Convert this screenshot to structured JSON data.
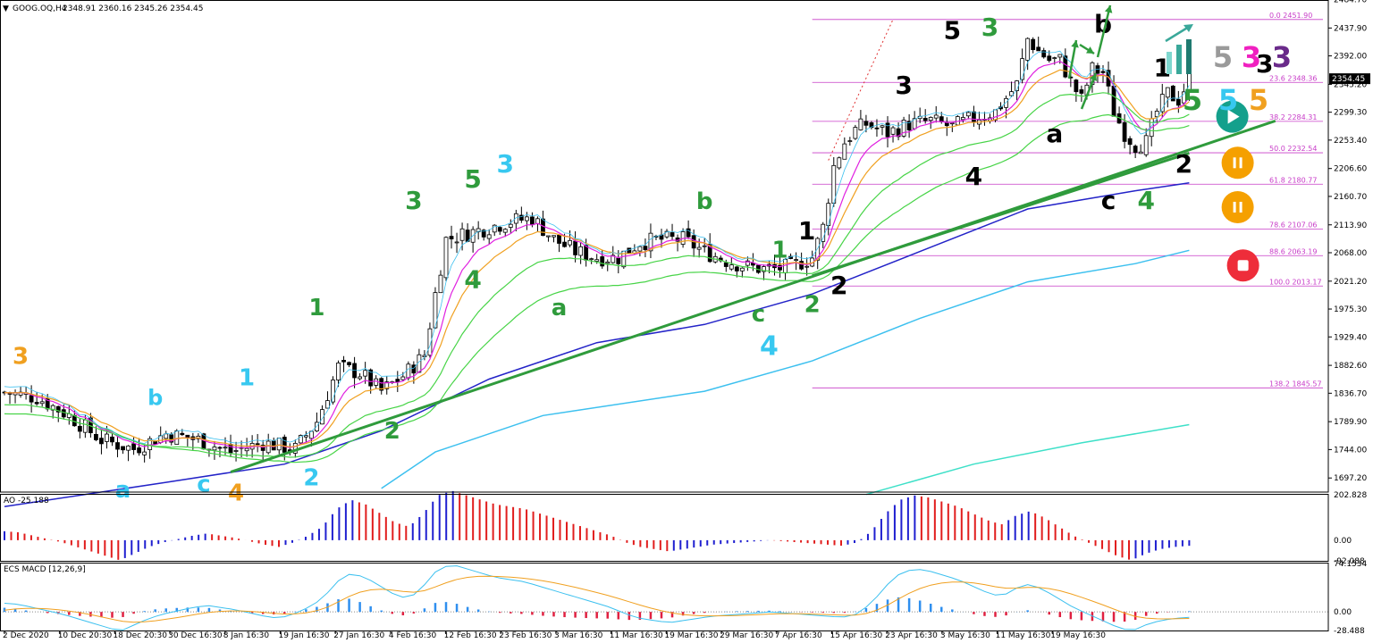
{
  "header": {
    "symbol": "GOOG.OQ,H4",
    "ohlc": "2348.91 2360.16 2345.26 2354.45",
    "triangle": "▼"
  },
  "colors": {
    "bg": "#ffffff",
    "grid": "#e6e6e6",
    "candle_bull": "#ffffff",
    "candle_bear": "#000000",
    "trend": "#2f9b3c",
    "fib": "#c83cc8",
    "ma_blue": "#2323c8",
    "ma_cyan": "#3cc0ef",
    "ma_teal": "#3ee0c8",
    "ema_green": "#47d447",
    "ema_orange": "#f0a020",
    "ema_magenta": "#e020e0",
    "ao_up": "#1f1fd0",
    "ao_down": "#e11d1d",
    "macd_up": "#2f8fef",
    "macd_down": "#e02040",
    "play": "#14a08c",
    "pause": "#f5a000",
    "stop": "#ee2d3a"
  },
  "chart_data": {
    "type": "candlestick",
    "symbol": "GOOG.OQ",
    "timeframe": "H4",
    "ylim": [
      1674,
      2484
    ],
    "price_ticks": [
      2484.7,
      2437.9,
      2392.0,
      2345.2,
      2299.3,
      2253.4,
      2206.6,
      2160.7,
      2113.9,
      2068.0,
      2021.2,
      1975.3,
      1929.4,
      1882.6,
      1836.7,
      1789.9,
      1744.0,
      1697.2
    ],
    "current_price_label": "2354.45",
    "time_labels": [
      "2 Dec 2020",
      "10 Dec 20:30",
      "18 Dec 20:30",
      "30 Dec 16:30",
      "8 Jan 16:30",
      "19 Jan 16:30",
      "27 Jan 16:30",
      "4 Feb 16:30",
      "12 Feb 16:30",
      "23 Feb 16:30",
      "3 Mar 16:30",
      "11 Mar 16:30",
      "19 Mar 16:30",
      "29 Mar 16:30",
      "7 Apr 16:30",
      "15 Apr 16:30",
      "23 Apr 16:30",
      "3 May 16:30",
      "11 May 16:30",
      "19 May 16:30"
    ],
    "close_path": [
      [
        0,
        1838
      ],
      [
        6,
        1830
      ],
      [
        12,
        1800
      ],
      [
        18,
        1760
      ],
      [
        24,
        1745
      ],
      [
        30,
        1770
      ],
      [
        36,
        1760
      ],
      [
        42,
        1740
      ],
      [
        48,
        1755
      ],
      [
        54,
        1745
      ],
      [
        58,
        1790
      ],
      [
        62,
        1880
      ],
      [
        66,
        1870
      ],
      [
        70,
        1840
      ],
      [
        74,
        1865
      ],
      [
        78,
        1900
      ],
      [
        80,
        2000
      ],
      [
        82,
        2090
      ],
      [
        86,
        2100
      ],
      [
        90,
        2110
      ],
      [
        94,
        2120
      ],
      [
        98,
        2125
      ],
      [
        102,
        2090
      ],
      [
        106,
        2070
      ],
      [
        110,
        2060
      ],
      [
        114,
        2060
      ],
      [
        118,
        2085
      ],
      [
        122,
        2090
      ],
      [
        126,
        2090
      ],
      [
        130,
        2070
      ],
      [
        134,
        2055
      ],
      [
        138,
        2045
      ],
      [
        142,
        2040
      ],
      [
        146,
        2045
      ],
      [
        150,
        2060
      ],
      [
        152,
        2110
      ],
      [
        154,
        2210
      ],
      [
        156,
        2250
      ],
      [
        158,
        2270
      ],
      [
        160,
        2280
      ],
      [
        164,
        2265
      ],
      [
        168,
        2280
      ],
      [
        172,
        2285
      ],
      [
        176,
        2275
      ],
      [
        180,
        2290
      ],
      [
        184,
        2300
      ],
      [
        188,
        2345
      ],
      [
        190,
        2420
      ],
      [
        192,
        2400
      ],
      [
        194,
        2385
      ],
      [
        196,
        2385
      ],
      [
        198,
        2350
      ],
      [
        200,
        2320
      ],
      [
        202,
        2370
      ],
      [
        204,
        2365
      ],
      [
        206,
        2300
      ],
      [
        208,
        2265
      ],
      [
        210,
        2245
      ],
      [
        212,
        2250
      ],
      [
        214,
        2300
      ],
      [
        216,
        2330
      ],
      [
        218,
        2320
      ],
      [
        220,
        2354
      ]
    ],
    "fibonacci": [
      {
        "level": "0.0",
        "price": 2451.9
      },
      {
        "level": "23.6",
        "price": 2348.36
      },
      {
        "level": "38.2",
        "price": 2284.31
      },
      {
        "level": "50.0",
        "price": 2232.54
      },
      {
        "level": "61.8",
        "price": 2180.77
      },
      {
        "level": "78.6",
        "price": 2107.06
      },
      {
        "level": "88.6",
        "price": 2063.19
      },
      {
        "level": "100.0",
        "price": 2013.17
      },
      {
        "level": "138.2",
        "price": 1845.57
      }
    ],
    "moving_averages": [
      {
        "color": "ma_blue",
        "points": [
          [
            0,
            1650
          ],
          [
            30,
            1690
          ],
          [
            52,
            1720
          ],
          [
            70,
            1775
          ],
          [
            90,
            1860
          ],
          [
            110,
            1920
          ],
          [
            130,
            1950
          ],
          [
            150,
            2000
          ],
          [
            170,
            2070
          ],
          [
            190,
            2140
          ],
          [
            210,
            2170
          ],
          [
            220,
            2183
          ]
        ]
      },
      {
        "color": "ma_cyan",
        "points": [
          [
            70,
            1680
          ],
          [
            80,
            1740
          ],
          [
            100,
            1800
          ],
          [
            130,
            1840
          ],
          [
            150,
            1890
          ],
          [
            170,
            1960
          ],
          [
            190,
            2020
          ],
          [
            210,
            2050
          ],
          [
            220,
            2072
          ]
        ]
      },
      {
        "color": "ma_teal",
        "points": [
          [
            160,
            1670
          ],
          [
            180,
            1720
          ],
          [
            200,
            1755
          ],
          [
            220,
            1785
          ]
        ]
      }
    ],
    "trendlines": [
      {
        "from": [
          42,
          1707
        ],
        "to": [
          236,
          2285
        ]
      },
      {
        "from": [
          150,
          2030
        ],
        "to": [
          220,
          2232
        ]
      }
    ],
    "wave_labels": [
      {
        "text": "3",
        "color": "#f0a020",
        "i": 3,
        "p": 1885,
        "size": 26
      },
      {
        "text": "b",
        "color": "#38c8f0",
        "i": 28,
        "p": 1817,
        "size": 24
      },
      {
        "text": "a",
        "color": "#38c8f0",
        "i": 22,
        "p": 1665,
        "size": 26
      },
      {
        "text": "c",
        "color": "#38c8f0",
        "i": 37,
        "p": 1675,
        "size": 26
      },
      {
        "text": "4",
        "color": "#f0a020",
        "i": 43,
        "p": 1660,
        "size": 26
      },
      {
        "text": "1",
        "color": "#38c8f0",
        "i": 45,
        "p": 1850,
        "size": 26
      },
      {
        "text": "2",
        "color": "#38c8f0",
        "i": 57,
        "p": 1685,
        "size": 26
      },
      {
        "text": "2",
        "color": "#2f9b3c",
        "i": 72,
        "p": 1762,
        "size": 26
      },
      {
        "text": "1",
        "color": "#2f9b3c",
        "i": 58,
        "p": 1965,
        "size": 26
      },
      {
        "text": "3",
        "color": "#2f9b3c",
        "i": 76,
        "p": 2140,
        "size": 28
      },
      {
        "text": "4",
        "color": "#2f9b3c",
        "i": 87,
        "p": 2010,
        "size": 28
      },
      {
        "text": "5",
        "color": "#2f9b3c",
        "i": 87,
        "p": 2175,
        "size": 28
      },
      {
        "text": "3",
        "color": "#38c8f0",
        "i": 93,
        "p": 2200,
        "size": 28
      },
      {
        "text": "a",
        "color": "#2f9b3c",
        "i": 103,
        "p": 1965,
        "size": 26
      },
      {
        "text": "b",
        "color": "#2f9b3c",
        "i": 130,
        "p": 2140,
        "size": 26
      },
      {
        "text": "1",
        "color": "#2f9b3c",
        "i": 144,
        "p": 2060,
        "size": 26
      },
      {
        "text": "c",
        "color": "#2f9b3c",
        "i": 140,
        "p": 1955,
        "size": 26
      },
      {
        "text": "4",
        "color": "#38c8f0",
        "i": 142,
        "p": 1900,
        "size": 30
      },
      {
        "text": "2",
        "color": "#2f9b3c",
        "i": 150,
        "p": 1970,
        "size": 26
      },
      {
        "text": "1",
        "color": "#000000",
        "i": 149,
        "p": 2090,
        "size": 28
      },
      {
        "text": "2",
        "color": "#000000",
        "i": 155,
        "p": 2000,
        "size": 28
      },
      {
        "text": "3",
        "color": "#000000",
        "i": 167,
        "p": 2330,
        "size": 28
      },
      {
        "text": "4",
        "color": "#000000",
        "i": 180,
        "p": 2180,
        "size": 28
      },
      {
        "text": "5",
        "color": "#000000",
        "i": 176,
        "p": 2420,
        "size": 28
      },
      {
        "text": "3",
        "color": "#2f9b3c",
        "i": 183,
        "p": 2425,
        "size": 28
      },
      {
        "text": "a",
        "color": "#000000",
        "i": 195,
        "p": 2250,
        "size": 28
      },
      {
        "text": "b",
        "color": "#000000",
        "i": 204,
        "p": 2430,
        "size": 28
      },
      {
        "text": "1",
        "color": "#000000",
        "i": 215,
        "p": 2358,
        "size": 28
      },
      {
        "text": "2",
        "color": "#000000",
        "i": 219,
        "p": 2200,
        "size": 28
      },
      {
        "text": "c",
        "color": "#000000",
        "i": 205,
        "p": 2140,
        "size": 28
      },
      {
        "text": "4",
        "color": "#2f9b3c",
        "i": 212,
        "p": 2140,
        "size": 28
      },
      {
        "text": "3",
        "color": "#000000",
        "i": 234,
        "p": 2365,
        "size": 28
      }
    ],
    "legend_waves": [
      {
        "text": "5",
        "color": "#9a9a9a"
      },
      {
        "text": "3",
        "color": "#f020c0"
      },
      {
        "text": "3",
        "color": "#6a2a8a"
      },
      {
        "text": "5",
        "color": "#2f9b3c"
      },
      {
        "text": "5",
        "color": "#38c8f0"
      },
      {
        "text": "5",
        "color": "#f0a020"
      }
    ],
    "ao": {
      "label": "AO -25.188",
      "ticks": [
        202.828,
        0.0,
        -92.088
      ],
      "values": [
        40,
        35,
        20,
        5,
        -10,
        -30,
        -50,
        -70,
        -90,
        -60,
        -30,
        -10,
        5,
        20,
        30,
        20,
        10,
        -5,
        -20,
        -30,
        -10,
        20,
        60,
        140,
        180,
        160,
        120,
        80,
        60,
        120,
        200,
        220,
        200,
        180,
        160,
        150,
        140,
        120,
        100,
        80,
        60,
        40,
        20,
        -10,
        -30,
        -40,
        -50,
        -40,
        -30,
        -20,
        -15,
        -10,
        -5,
        0,
        -5,
        -10,
        -15,
        -20,
        -25,
        -10,
        40,
        120,
        180,
        200,
        190,
        170,
        150,
        120,
        90,
        70,
        110,
        130,
        100,
        60,
        20,
        -10,
        -40,
        -70,
        -90,
        -60,
        -40,
        -30,
        -25
      ]
    },
    "macd": {
      "label": "ECS MACD [12,26,9]",
      "ticks": [
        74.1534,
        0.0,
        -28.488
      ]
    },
    "signals": [
      {
        "type": "play",
        "i": 228,
        "p": 2292
      },
      {
        "type": "pause",
        "i": 229,
        "p": 2216
      },
      {
        "type": "pause",
        "i": 229,
        "p": 2143
      },
      {
        "type": "stop",
        "i": 230,
        "p": 2047
      }
    ]
  }
}
